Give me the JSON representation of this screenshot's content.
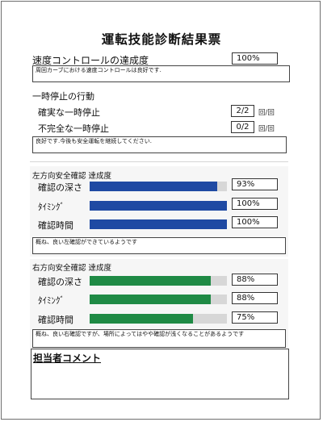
{
  "title": "運転技能診断結果票",
  "speed": {
    "label": "速度コントロールの達成度",
    "value": "100%",
    "comment": "周回カーブにおける速度コントロールは良好です."
  },
  "stop": {
    "heading": "一時停止の行動",
    "rows": [
      {
        "label": "確実な一時停止",
        "value": "2/2",
        "unit": "回/回"
      },
      {
        "label": "不完全な一時停止",
        "value": "0/2",
        "unit": "回/回"
      }
    ],
    "comment": "良好です.今後も安全運転を継続してください."
  },
  "left": {
    "title": "左方向安全確認 達成度",
    "accent": "#1f4aa3",
    "rows": [
      {
        "label": "確認の深さ",
        "value": "93%",
        "level": 0.93
      },
      {
        "label": "ﾀｲﾐﾝｸﾞ",
        "value": "100%",
        "level": 1.0
      },
      {
        "label": "確認時間",
        "value": "100%",
        "level": 1.0
      }
    ],
    "comment": "概ね、良い左確認ができているようです"
  },
  "right": {
    "title": "右方向安全確認 達成度",
    "accent": "#1f8a45",
    "rows": [
      {
        "label": "確認の深さ",
        "value": "88%",
        "level": 0.88
      },
      {
        "label": "ﾀｲﾐﾝｸﾞ",
        "value": "88%",
        "level": 0.88
      },
      {
        "label": "確認時間",
        "value": "75%",
        "level": 0.75
      }
    ],
    "comment": "概ね、良い右確認ですが、場所によってはやや確認が浅くなることがあるようです"
  },
  "staff": {
    "heading": "担当者コメント",
    "comment": ""
  }
}
